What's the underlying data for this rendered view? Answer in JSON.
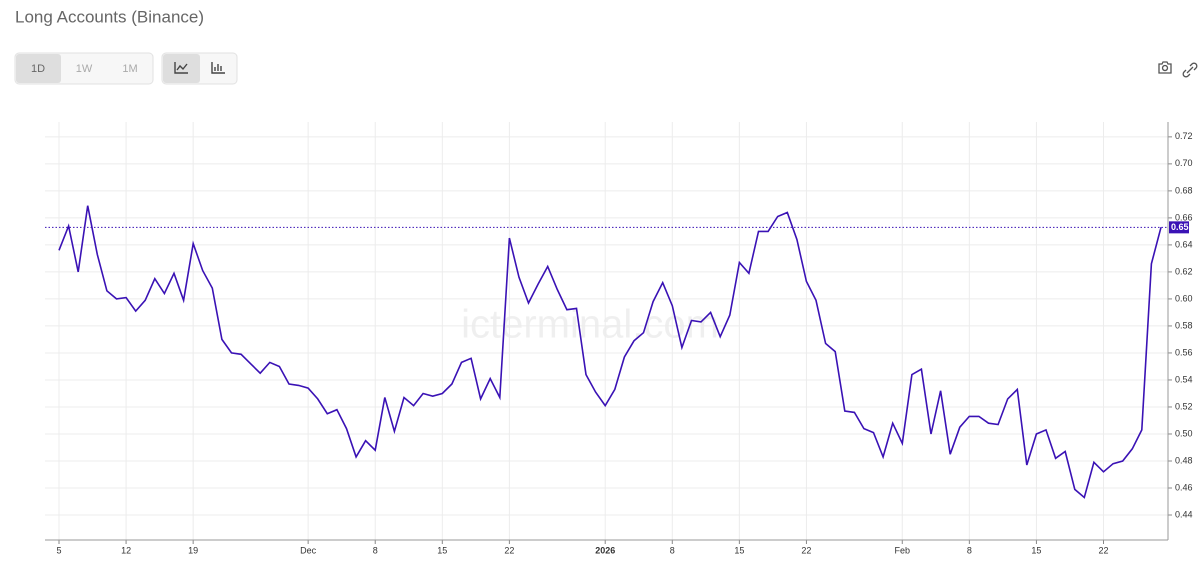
{
  "ui": {
    "title": "Long Accounts (Binance)",
    "ranges": [
      "1D",
      "1W",
      "1M"
    ]
  },
  "chart_data": {
    "type": "line",
    "watermark": "icterminal.com",
    "color": "#3a12b5",
    "grid": true,
    "categories": [
      "5",
      null,
      null,
      null,
      null,
      null,
      null,
      "12",
      null,
      null,
      null,
      null,
      null,
      null,
      "19",
      null,
      null,
      null,
      null,
      null,
      null,
      null,
      null,
      null,
      null,
      null,
      "Dec",
      null,
      null,
      null,
      null,
      null,
      null,
      "8",
      null,
      null,
      null,
      null,
      null,
      null,
      "15",
      null,
      null,
      null,
      null,
      null,
      null,
      "22",
      null,
      null,
      null,
      null,
      null,
      null,
      null,
      null,
      null,
      "2026",
      null,
      null,
      null,
      null,
      null,
      null,
      "8",
      null,
      null,
      null,
      null,
      null,
      null,
      "15",
      null,
      null,
      null,
      null,
      null,
      null,
      "22",
      null,
      null,
      null,
      null,
      null,
      null,
      null,
      null,
      null,
      "Feb",
      null,
      null,
      null,
      null,
      null,
      null,
      "8",
      null,
      null,
      null,
      null,
      null,
      null,
      "15",
      null,
      null,
      null,
      null,
      null,
      null,
      "22",
      null,
      null,
      null,
      null,
      null,
      null
    ],
    "values": [
      0.636,
      0.654,
      0.62,
      0.669,
      0.633,
      0.606,
      0.6,
      0.601,
      0.591,
      0.599,
      0.615,
      0.604,
      0.619,
      0.599,
      0.641,
      0.621,
      0.608,
      0.57,
      0.56,
      0.559,
      0.552,
      0.545,
      0.553,
      0.55,
      0.537,
      0.536,
      0.534,
      0.526,
      0.515,
      0.518,
      0.504,
      0.483,
      0.495,
      0.488,
      0.527,
      0.502,
      0.527,
      0.521,
      0.53,
      0.528,
      0.53,
      0.537,
      0.553,
      0.556,
      0.526,
      0.541,
      0.527,
      0.645,
      0.616,
      0.597,
      0.611,
      0.624,
      0.607,
      0.592,
      0.593,
      0.544,
      0.531,
      0.521,
      0.533,
      0.557,
      0.569,
      0.575,
      0.598,
      0.612,
      0.595,
      0.564,
      0.584,
      0.583,
      0.59,
      0.572,
      0.588,
      0.627,
      0.619,
      0.65,
      0.65,
      0.661,
      0.664,
      0.644,
      0.613,
      0.599,
      0.567,
      0.561,
      0.517,
      0.516,
      0.504,
      0.501,
      0.483,
      0.508,
      0.493,
      0.544,
      0.548,
      0.5,
      0.532,
      0.485,
      0.505,
      0.513,
      0.513,
      0.508,
      0.507,
      0.526,
      0.533,
      0.477,
      0.5,
      0.503,
      0.482,
      0.487,
      0.459,
      0.453,
      0.479,
      0.472,
      0.478,
      0.48,
      0.489,
      0.503,
      0.626,
      0.653
    ],
    "value_labels": [
      null,
      null,
      null,
      null,
      null,
      null,
      null,
      null,
      null,
      null,
      null,
      null,
      null,
      null,
      null,
      null,
      null,
      null,
      null,
      null,
      null,
      null,
      null,
      null,
      null,
      null,
      null,
      null,
      null,
      null,
      null,
      null,
      null,
      null,
      null,
      null,
      null,
      null,
      null,
      null,
      null,
      null,
      null,
      null,
      null,
      null,
      null,
      null,
      null,
      null,
      null,
      null,
      null,
      null,
      null,
      null,
      null,
      null,
      null,
      null,
      null,
      null,
      null,
      null,
      null,
      null,
      null,
      null,
      null,
      null,
      null,
      null,
      null,
      null,
      null,
      null,
      null,
      null,
      null,
      null,
      null,
      null,
      null,
      null,
      null,
      null,
      null,
      null,
      null,
      null,
      null,
      null,
      null,
      null,
      null,
      null,
      null,
      null,
      null,
      null,
      null,
      null,
      null,
      null,
      null,
      null,
      null,
      null,
      null,
      null,
      null,
      null,
      null,
      null,
      null,
      "0.65"
    ],
    "ylim": [
      0.4215,
      0.731
    ],
    "yticks": [
      0.44,
      0.46,
      0.48,
      {
        "value": 0.5,
        "label": "0.50"
      },
      0.52,
      0.54,
      0.56,
      0.58,
      {
        "value": 0.6,
        "label": "0.60"
      },
      0.62,
      0.64,
      0.66,
      0.68,
      {
        "value": 0.7,
        "label": "0.70"
      },
      0.72
    ]
  }
}
